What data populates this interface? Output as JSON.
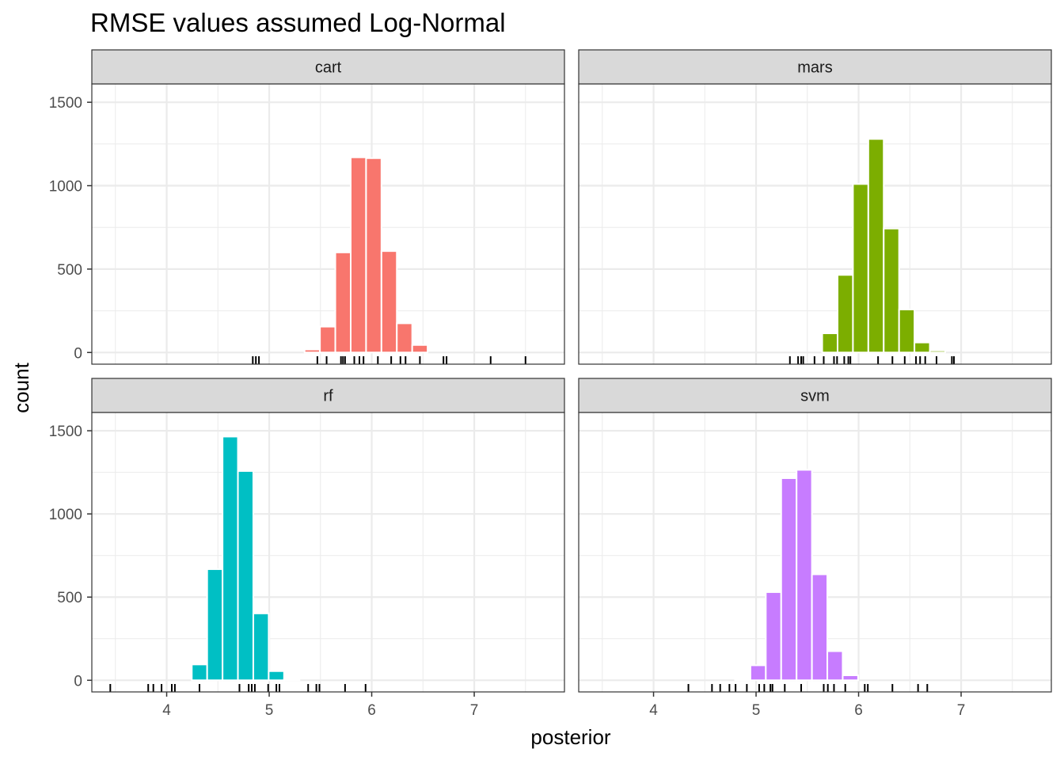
{
  "chart_data": {
    "type": "bar",
    "title": "RMSE values assumed Log-Normal",
    "xlabel": "posterior",
    "ylabel": "count",
    "xlim": [
      3.27,
      7.88
    ],
    "ylim": [
      -70,
      1610
    ],
    "x_ticks": [
      4,
      5,
      6,
      7
    ],
    "x_tick_labels": [
      "4",
      "5",
      "6",
      "7"
    ],
    "y_ticks": [
      0,
      500,
      1000,
      1500
    ],
    "y_tick_labels": [
      "0",
      "500",
      "1000",
      "1500"
    ],
    "grid": true,
    "legend": "none",
    "bin_width": 0.15,
    "facets": [
      {
        "label": "cart",
        "color": "#F8766D",
        "bins": [
          {
            "x": 5.42,
            "count": 18
          },
          {
            "x": 5.57,
            "count": 155
          },
          {
            "x": 5.72,
            "count": 600
          },
          {
            "x": 5.87,
            "count": 1170
          },
          {
            "x": 6.02,
            "count": 1165
          },
          {
            "x": 6.17,
            "count": 608
          },
          {
            "x": 6.32,
            "count": 175
          },
          {
            "x": 6.47,
            "count": 45
          }
        ],
        "rug": [
          4.84,
          4.87,
          4.9,
          5.47,
          5.56,
          5.7,
          5.72,
          5.74,
          5.83,
          5.88,
          5.92,
          6.06,
          6.19,
          6.28,
          6.33,
          6.47,
          6.7,
          6.73,
          7.16,
          7.5
        ]
      },
      {
        "label": "mars",
        "color": "#7CAE00",
        "bins": [
          {
            "x": 5.72,
            "count": 115
          },
          {
            "x": 5.87,
            "count": 465
          },
          {
            "x": 6.02,
            "count": 1010
          },
          {
            "x": 6.17,
            "count": 1280
          },
          {
            "x": 6.32,
            "count": 743
          },
          {
            "x": 6.47,
            "count": 258
          },
          {
            "x": 6.62,
            "count": 60
          },
          {
            "x": 6.77,
            "count": 12
          }
        ],
        "rug": [
          5.33,
          5.41,
          5.44,
          5.46,
          5.57,
          5.66,
          5.76,
          5.79,
          5.86,
          5.9,
          5.92,
          6.19,
          6.33,
          6.45,
          6.56,
          6.6,
          6.65,
          6.76,
          6.91,
          6.93
        ]
      },
      {
        "label": "rf",
        "color": "#00BFC4",
        "bins": [
          {
            "x": 4.32,
            "count": 95
          },
          {
            "x": 4.47,
            "count": 668
          },
          {
            "x": 4.62,
            "count": 1465
          },
          {
            "x": 4.77,
            "count": 1258
          },
          {
            "x": 4.92,
            "count": 402
          },
          {
            "x": 5.07,
            "count": 55
          },
          {
            "x": 5.22,
            "count": 5
          }
        ],
        "rug": [
          3.45,
          3.82,
          3.87,
          3.95,
          4.05,
          4.08,
          4.32,
          4.71,
          4.8,
          4.83,
          4.86,
          4.99,
          5.07,
          5.1,
          5.38,
          5.46,
          5.49,
          5.74,
          5.94
        ]
      },
      {
        "label": "svm",
        "color": "#C77CFF",
        "bins": [
          {
            "x": 4.87,
            "count": 6
          },
          {
            "x": 5.02,
            "count": 90
          },
          {
            "x": 5.17,
            "count": 530
          },
          {
            "x": 5.32,
            "count": 1215
          },
          {
            "x": 5.47,
            "count": 1265
          },
          {
            "x": 5.62,
            "count": 637
          },
          {
            "x": 5.77,
            "count": 175
          },
          {
            "x": 5.92,
            "count": 30
          }
        ],
        "rug": [
          4.34,
          4.57,
          4.65,
          4.74,
          4.8,
          4.91,
          5.03,
          5.08,
          5.14,
          5.16,
          5.28,
          5.44,
          5.66,
          5.7,
          5.76,
          5.87,
          6.06,
          6.09,
          6.33,
          6.58,
          6.67
        ]
      }
    ]
  }
}
